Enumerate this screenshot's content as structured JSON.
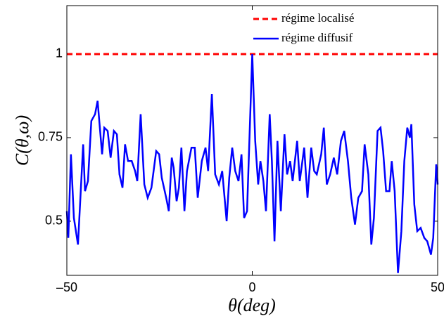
{
  "chart_data": {
    "type": "line",
    "xlabel": "θ(deg)",
    "ylabel": "C(θ,ω)",
    "xlim": [
      -50,
      50
    ],
    "ylim": [
      0.338,
      1.145
    ],
    "xticks": [
      {
        "value": -50,
        "label": "–50"
      },
      0,
      50
    ],
    "yticks": [
      0.5,
      0.75,
      1
    ],
    "grid": false,
    "legend": "upper right",
    "series": [
      {
        "name": "régime localisé",
        "color": "#ff0000",
        "dash": true,
        "x": [
          -50,
          50
        ],
        "values": [
          1,
          1
        ]
      },
      {
        "name": "régime diffusif",
        "color": "#0000ff",
        "dash": false,
        "x": [
          -50.0,
          -49.6,
          -48.9,
          -48.1,
          -47.0,
          -45.6,
          -45.1,
          -44.3,
          -43.4,
          -42.4,
          -41.7,
          -40.5,
          -39.9,
          -39.0,
          -38.2,
          -37.3,
          -36.5,
          -35.8,
          -35.0,
          -34.3,
          -33.5,
          -32.5,
          -31.6,
          -31.0,
          -30.1,
          -29.1,
          -28.2,
          -27.2,
          -25.9,
          -25.1,
          -24.4,
          -23.2,
          -22.5,
          -21.7,
          -21.2,
          -20.4,
          -19.8,
          -19.1,
          -18.3,
          -17.6,
          -16.4,
          -15.5,
          -14.7,
          -13.6,
          -12.6,
          -11.9,
          -10.9,
          -10.0,
          -9.0,
          -8.1,
          -6.9,
          -6.2,
          -5.4,
          -4.6,
          -3.7,
          -2.9,
          -2.2,
          -1.4,
          0,
          0.8,
          1.6,
          2.2,
          3.0,
          3.7,
          4.7,
          5.3,
          6.0,
          6.8,
          7.7,
          8.7,
          9.4,
          10.2,
          10.9,
          12.1,
          12.8,
          14.0,
          14.9,
          15.9,
          16.7,
          17.4,
          18.6,
          19.3,
          20.1,
          21.0,
          22.0,
          22.9,
          23.9,
          24.8,
          25.8,
          26.7,
          27.7,
          28.6,
          29.6,
          30.3,
          31.3,
          32.1,
          32.8,
          33.8,
          34.6,
          35.3,
          36.1,
          37.0,
          37.6,
          38.4,
          39.3,
          40.2,
          41.0,
          41.8,
          42.5,
          42.9,
          43.7,
          44.5,
          45.4,
          46.4,
          47.2,
          48.2,
          48.8,
          49.6,
          50.0
        ],
        "values": [
          0.53,
          0.45,
          0.7,
          0.51,
          0.43,
          0.73,
          0.59,
          0.62,
          0.8,
          0.82,
          0.86,
          0.7,
          0.78,
          0.77,
          0.69,
          0.77,
          0.76,
          0.64,
          0.6,
          0.73,
          0.68,
          0.68,
          0.65,
          0.62,
          0.82,
          0.61,
          0.57,
          0.6,
          0.71,
          0.7,
          0.63,
          0.57,
          0.53,
          0.69,
          0.66,
          0.56,
          0.6,
          0.72,
          0.53,
          0.65,
          0.72,
          0.72,
          0.57,
          0.68,
          0.72,
          0.65,
          0.88,
          0.64,
          0.61,
          0.65,
          0.5,
          0.63,
          0.72,
          0.65,
          0.62,
          0.7,
          0.51,
          0.53,
          1.0,
          0.74,
          0.61,
          0.68,
          0.62,
          0.53,
          0.82,
          0.68,
          0.44,
          0.74,
          0.53,
          0.76,
          0.64,
          0.68,
          0.62,
          0.74,
          0.62,
          0.72,
          0.57,
          0.72,
          0.65,
          0.64,
          0.7,
          0.78,
          0.61,
          0.64,
          0.69,
          0.64,
          0.74,
          0.77,
          0.68,
          0.57,
          0.49,
          0.57,
          0.59,
          0.73,
          0.64,
          0.43,
          0.51,
          0.77,
          0.78,
          0.71,
          0.59,
          0.59,
          0.68,
          0.59,
          0.345,
          0.47,
          0.68,
          0.78,
          0.75,
          0.79,
          0.55,
          0.47,
          0.48,
          0.45,
          0.44,
          0.4,
          0.45,
          0.67,
          0.61
        ]
      }
    ]
  }
}
